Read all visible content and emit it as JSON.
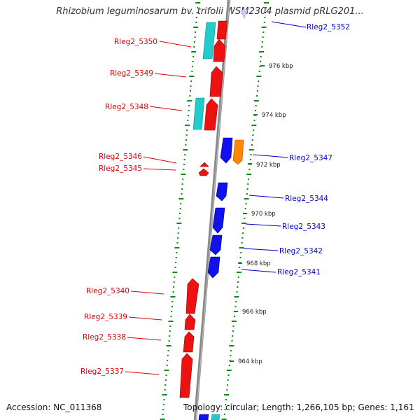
{
  "title": "Rhizobium leguminosarum bv. trifolii WSM2304 plasmid pRLG201...",
  "footer": {
    "accession": "Accession: NC_011368",
    "genome_info": "Topology: circular; Length: 1,266,105 bp; Genes: 1,161"
  },
  "colors": {
    "left_label": "#dd0000",
    "right_label": "#0000cc",
    "tick": "#118811",
    "forward_gene": "#ee1111",
    "reverse_gene": "#1111ee",
    "cyan_gene": "#22cccc",
    "orange_gene": "#ff8800",
    "backbone": "#888888"
  },
  "kbp_markers": [
    {
      "label": "976 kbp",
      "kbp": 976
    },
    {
      "label": "974 kbp",
      "kbp": 974
    },
    {
      "label": "972 kbp",
      "kbp": 972
    },
    {
      "label": "970 kbp",
      "kbp": 970
    },
    {
      "label": "968 kbp",
      "kbp": 968
    },
    {
      "label": "966 kbp",
      "kbp": 966
    },
    {
      "label": "964 kbp",
      "kbp": 964
    }
  ],
  "genes": [
    {
      "name": "Rleg2_5352",
      "side": "right",
      "color": "blue"
    },
    {
      "name": "Rleg2_5350",
      "side": "left",
      "color": "red"
    },
    {
      "name": "Rleg2_5349",
      "side": "left",
      "color": "red"
    },
    {
      "name": "Rleg2_5348",
      "side": "left",
      "color": "red"
    },
    {
      "name": "Rleg2_5347",
      "side": "right",
      "color": "blue"
    },
    {
      "name": "Rleg2_5346",
      "side": "left",
      "color": "red"
    },
    {
      "name": "Rleg2_5345",
      "side": "left",
      "color": "red"
    },
    {
      "name": "Rleg2_5344",
      "side": "right",
      "color": "blue"
    },
    {
      "name": "Rleg2_5343",
      "side": "right",
      "color": "blue"
    },
    {
      "name": "Rleg2_5342",
      "side": "right",
      "color": "blue"
    },
    {
      "name": "Rleg2_5341",
      "side": "right",
      "color": "blue"
    },
    {
      "name": "Rleg2_5340",
      "side": "left",
      "color": "red"
    },
    {
      "name": "Rleg2_5339",
      "side": "left",
      "color": "red"
    },
    {
      "name": "Rleg2_5338",
      "side": "left",
      "color": "red"
    },
    {
      "name": "Rleg2_5337",
      "side": "left",
      "color": "red"
    }
  ]
}
